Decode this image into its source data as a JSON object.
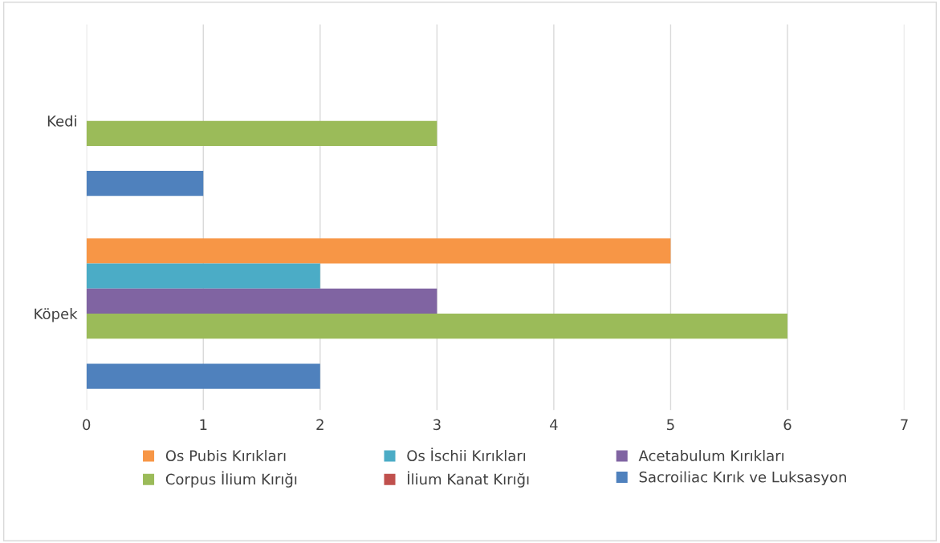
{
  "chart_data": {
    "type": "bar",
    "orientation": "horizontal",
    "categories": [
      "Kedi",
      "Köpek"
    ],
    "series": [
      {
        "name": "Os Pubis Kırıkları",
        "color": "#f79646",
        "values": [
          null,
          5
        ]
      },
      {
        "name": "Os İschii Kırıkları",
        "color": "#4bacc6",
        "values": [
          null,
          2
        ]
      },
      {
        "name": "Acetabulum Kırıkları",
        "color": "#8064a2",
        "values": [
          null,
          3
        ]
      },
      {
        "name": "Corpus İlium Kırığı",
        "color": "#9bbb59",
        "values": [
          3,
          6
        ]
      },
      {
        "name": "İlium Kanat Kırığı",
        "color": "#c0504d",
        "values": [
          null,
          null
        ]
      },
      {
        "name": "Sacroiliac Kırık ve Luksasyon",
        "color": "#4f81bd",
        "values": [
          1,
          2
        ]
      }
    ],
    "xlim": [
      0,
      7
    ],
    "xticks": [
      0,
      1,
      2,
      3,
      4,
      5,
      6,
      7
    ],
    "grid": "x",
    "legend": "bottom"
  }
}
